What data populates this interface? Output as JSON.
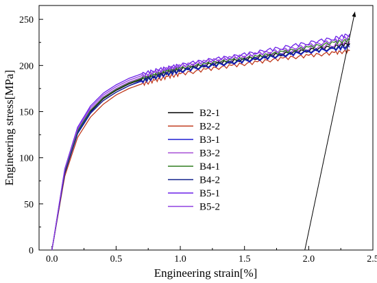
{
  "chart_data": {
    "type": "line",
    "xlabel": "Engineering strain[%]",
    "ylabel": "Engineering stress[MPa]",
    "xlim": [
      -0.1,
      2.5
    ],
    "ylim": [
      0,
      265
    ],
    "xticks": [
      "0.0",
      "0.5",
      "1.0",
      "1.5",
      "2.0",
      "2.5"
    ],
    "yticks": [
      "0",
      "50",
      "100",
      "150",
      "200",
      "250"
    ],
    "grid": false,
    "legend_position": "center",
    "series": [
      {
        "name": "B2-1",
        "color": "#000000",
        "x": [
          0,
          0.1,
          0.2,
          0.3,
          0.4,
          0.5,
          0.6,
          0.7,
          0.8,
          0.9,
          1.0,
          1.2,
          1.4,
          1.6,
          1.8,
          2.0,
          2.2,
          2.32
        ],
        "y": [
          0,
          85,
          128,
          150,
          164,
          173,
          180,
          185,
          189,
          193,
          196,
          201,
          205,
          209,
          213,
          217,
          221,
          224
        ]
      },
      {
        "name": "B2-2",
        "color": "#c0391b",
        "x": [
          0,
          0.1,
          0.2,
          0.3,
          0.4,
          0.5,
          0.6,
          0.7,
          0.8,
          0.9,
          1.0,
          1.2,
          1.4,
          1.6,
          1.8,
          2.0,
          2.2,
          2.32
        ],
        "y": [
          0,
          80,
          122,
          144,
          158,
          168,
          175,
          180,
          184,
          188,
          191,
          196,
          200,
          204,
          208,
          211,
          214,
          216
        ]
      },
      {
        "name": "B3-1",
        "color": "#1f1fd4",
        "x": [
          0,
          0.1,
          0.2,
          0.3,
          0.4,
          0.5,
          0.6,
          0.7,
          0.8,
          0.9,
          1.0,
          1.2,
          1.4,
          1.6,
          1.8,
          2.0,
          2.2,
          2.32
        ],
        "y": [
          0,
          84,
          127,
          149,
          162,
          171,
          178,
          183,
          187,
          191,
          194,
          199,
          203,
          207,
          211,
          215,
          218,
          220
        ]
      },
      {
        "name": "B3-2",
        "color": "#a64bd6",
        "x": [
          0,
          0.1,
          0.2,
          0.3,
          0.4,
          0.5,
          0.6,
          0.7,
          0.8,
          0.9,
          1.0,
          1.2,
          1.4,
          1.6,
          1.8,
          2.0,
          2.2,
          2.32
        ],
        "y": [
          0,
          86,
          130,
          152,
          166,
          175,
          182,
          187,
          191,
          195,
          198,
          203,
          207,
          211,
          215,
          219,
          223,
          226
        ]
      },
      {
        "name": "B4-1",
        "color": "#2f7d1f",
        "x": [
          0,
          0.1,
          0.2,
          0.3,
          0.4,
          0.5,
          0.6,
          0.7,
          0.8,
          0.9,
          1.0,
          1.2,
          1.4,
          1.6,
          1.8,
          2.0,
          2.2,
          2.32
        ],
        "y": [
          0,
          85,
          129,
          151,
          165,
          174,
          181,
          186,
          190,
          194,
          197,
          202,
          206,
          210,
          215,
          220,
          225,
          228
        ]
      },
      {
        "name": "B4-2",
        "color": "#10208a",
        "x": [
          0,
          0.1,
          0.2,
          0.3,
          0.4,
          0.5,
          0.6,
          0.7,
          0.8,
          0.9,
          1.0,
          1.2,
          1.4,
          1.6,
          1.8,
          2.0,
          2.2,
          2.32
        ],
        "y": [
          0,
          83,
          126,
          148,
          162,
          171,
          178,
          184,
          188,
          192,
          195,
          200,
          204,
          208,
          212,
          216,
          219,
          222
        ]
      },
      {
        "name": "B5-1",
        "color": "#6a1ee8",
        "x": [
          0,
          0.1,
          0.2,
          0.3,
          0.4,
          0.5,
          0.6,
          0.7,
          0.8,
          0.9,
          1.0,
          1.2,
          1.4,
          1.6,
          1.8,
          2.0,
          2.2,
          2.32
        ],
        "y": [
          0,
          88,
          133,
          156,
          170,
          179,
          186,
          191,
          195,
          198,
          201,
          206,
          210,
          215,
          220,
          225,
          230,
          234
        ]
      },
      {
        "name": "B5-2",
        "color": "#8e3fe0",
        "x": [
          0,
          0.1,
          0.2,
          0.3,
          0.4,
          0.5,
          0.6,
          0.7,
          0.8,
          0.9,
          1.0,
          1.2,
          1.4,
          1.6,
          1.8,
          2.0,
          2.2,
          2.32
        ],
        "y": [
          0,
          87,
          131,
          154,
          168,
          177,
          184,
          189,
          193,
          197,
          200,
          205,
          209,
          213,
          217,
          222,
          227,
          231
        ]
      }
    ],
    "annotation": {
      "type": "arrow",
      "x": [
        1.97,
        2.36
      ],
      "y": [
        0,
        258
      ],
      "color": "#000000"
    }
  }
}
